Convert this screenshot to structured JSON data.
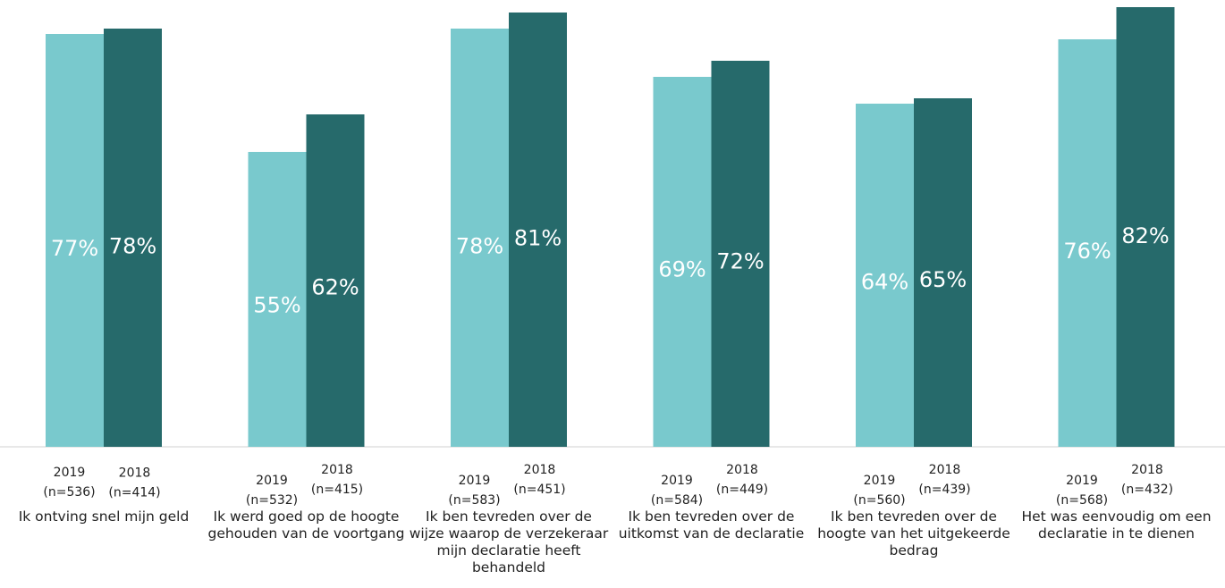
{
  "chart_data": {
    "type": "bar",
    "categories": [
      "Ik ontving snel mijn geld",
      "Ik werd goed op de hoogte gehouden van de voortgang",
      "Ik ben tevreden over de wijze waarop de verzekeraar mijn declaratie heeft behandeld",
      "Ik ben tevreden over de uitkomst van de declaratie",
      "Ik ben tevreden over de hoogte van het uitgekeerde bedrag",
      "Het was eenvoudig om een declaratie in te dienen"
    ],
    "series": [
      {
        "name": "2019",
        "values": [
          77,
          55,
          78,
          69,
          64,
          76
        ],
        "labels": [
          "77%",
          "55%",
          "78%",
          "69%",
          "64%",
          "76%"
        ],
        "n": [
          "(n=536)",
          "(n=532)",
          "(n=583)",
          "(n=584)",
          "(n=560)",
          "(n=568)"
        ],
        "color": "#79C9CD"
      },
      {
        "name": "2018",
        "values": [
          78,
          62,
          81,
          72,
          65,
          82
        ],
        "labels": [
          "78%",
          "62%",
          "81%",
          "72%",
          "65%",
          "82%"
        ],
        "n": [
          "(n=414)",
          "(n=415)",
          "(n=451)",
          "(n=449)",
          "(n=439)",
          "(n=432)"
        ],
        "color": "#266A6B"
      }
    ],
    "title": "",
    "xlabel": "",
    "ylabel": "",
    "ylim": [
      0,
      100
    ],
    "grid": false,
    "legend": "none"
  }
}
